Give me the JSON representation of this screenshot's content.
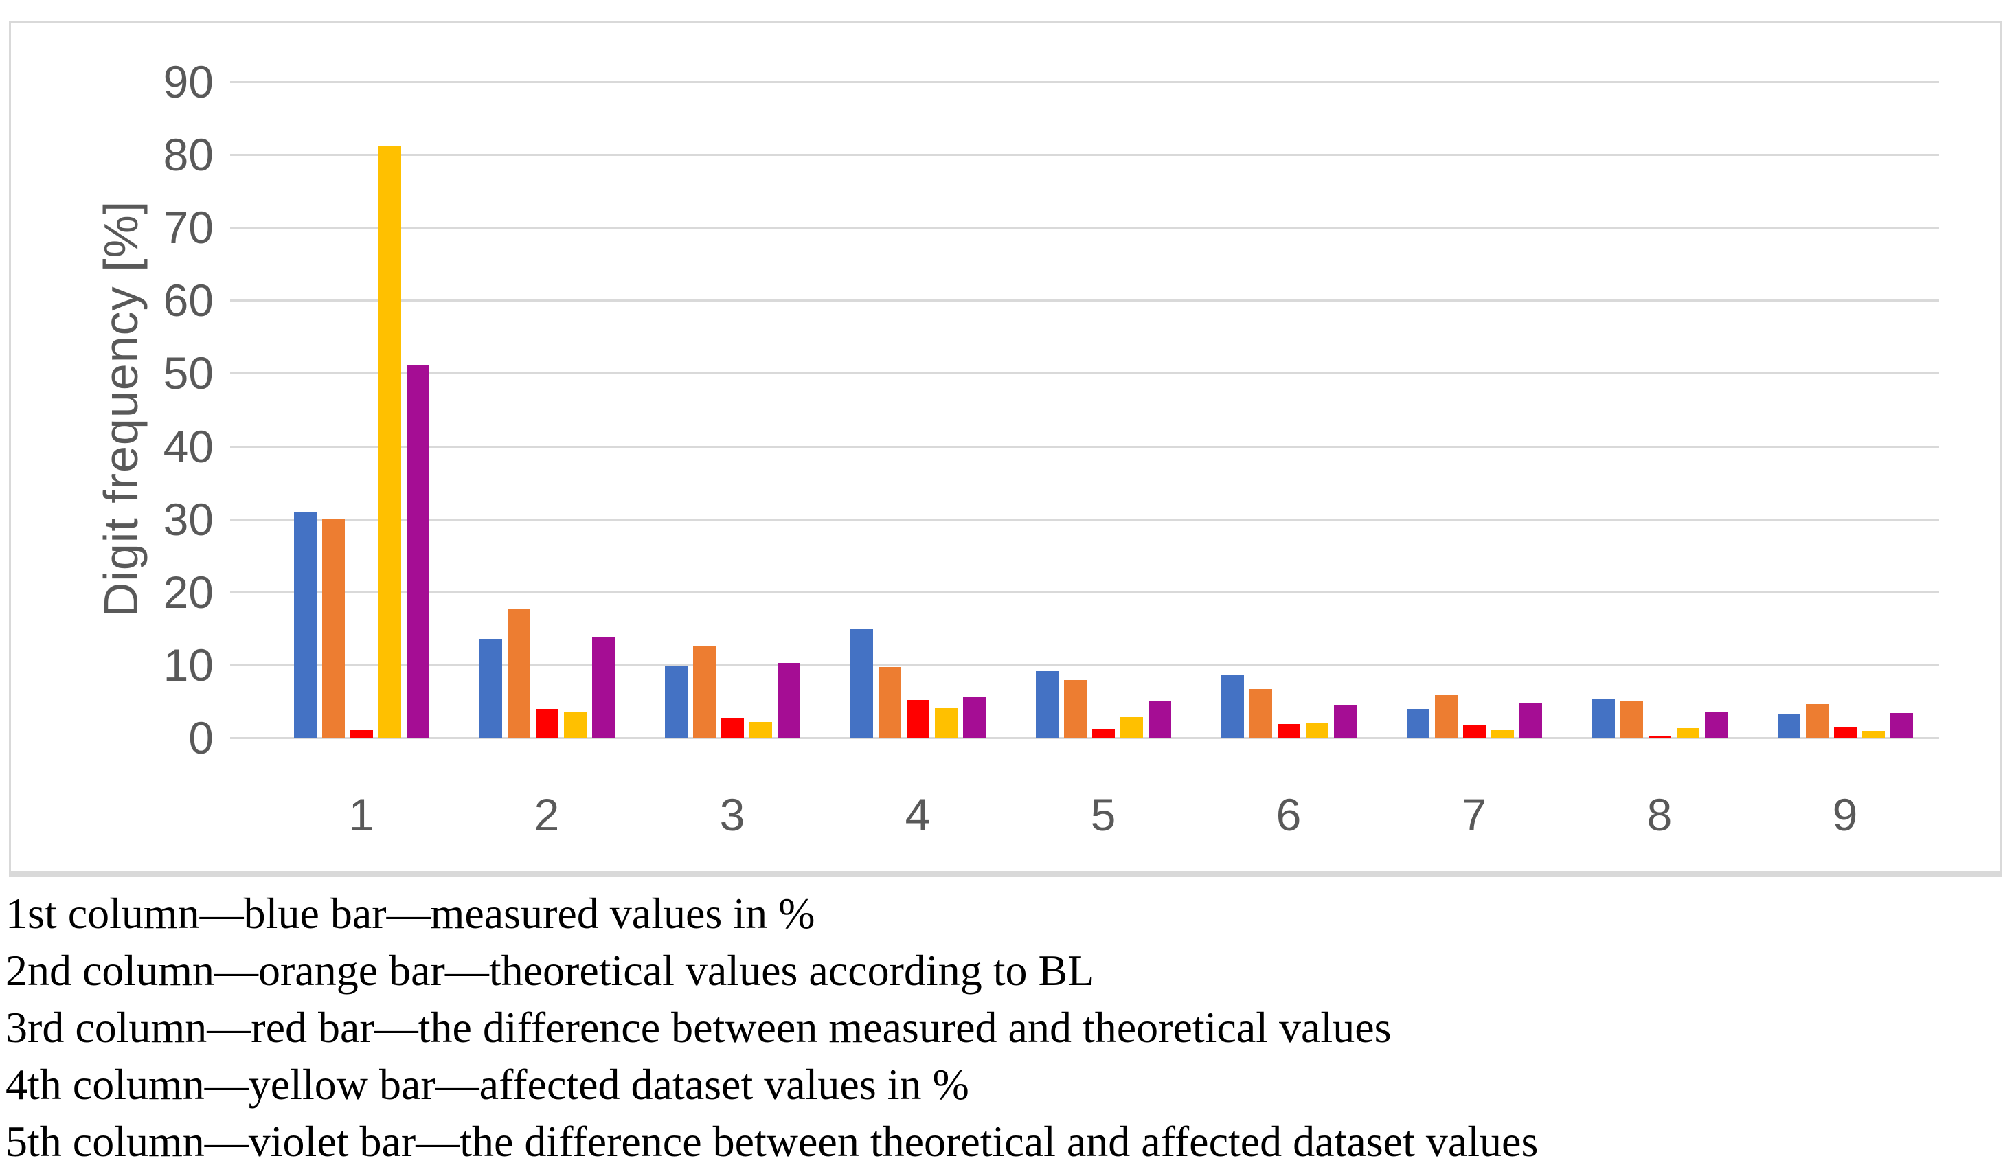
{
  "figure": {
    "caption_lines": [
      "1st column—blue bar—measured values in %",
      "2nd column—orange bar—theoretical values according to BL",
      "3rd column—red bar—the difference between measured and theoretical values",
      "4th column—yellow bar—affected dataset values in %",
      "5th column—violet bar—the difference between theoretical and affected dataset values"
    ]
  },
  "chart_data": {
    "type": "bar",
    "title": "",
    "xlabel": "",
    "ylabel": "Digit frequency [%]",
    "categories": [
      "1",
      "2",
      "3",
      "4",
      "5",
      "6",
      "7",
      "8",
      "9"
    ],
    "series": [
      {
        "key": "measured",
        "name": "measured values in %",
        "color": "#4472C4",
        "values": [
          31.0,
          13.6,
          9.8,
          14.9,
          9.1,
          8.6,
          4.0,
          5.4,
          3.2
        ]
      },
      {
        "key": "theoretical-bl",
        "name": "theoretical values according to BL",
        "color": "#ED7D31",
        "values": [
          30.1,
          17.6,
          12.5,
          9.7,
          7.9,
          6.7,
          5.8,
          5.1,
          4.6
        ]
      },
      {
        "key": "difference-measured-theoretical",
        "name": "the difference between measured and theoretical values",
        "color": "#FF0000",
        "values": [
          1.0,
          4.0,
          2.7,
          5.2,
          1.2,
          1.9,
          1.8,
          0.3,
          1.4
        ]
      },
      {
        "key": "affected",
        "name": "affected dataset values in %",
        "color": "#FFC000",
        "values": [
          81.2,
          3.6,
          2.2,
          4.1,
          2.8,
          2.0,
          1.0,
          1.3,
          0.9
        ]
      },
      {
        "key": "difference-theoretical-affected",
        "name": "the difference between theoretical and affected dataset values",
        "color": "#A50D94",
        "values": [
          51.1,
          13.9,
          10.3,
          5.6,
          5.0,
          4.5,
          4.7,
          3.6,
          3.4
        ]
      }
    ],
    "ylim": [
      0,
      90
    ],
    "ytick_step": 10,
    "yticks": [
      0,
      10,
      20,
      30,
      40,
      50,
      60,
      70,
      80,
      90
    ],
    "grid": true,
    "legend_position": "none",
    "colors": {
      "gridline": "#D9D9D9",
      "axis_text": "#595959",
      "chart_border": "#D9D9D9"
    }
  }
}
